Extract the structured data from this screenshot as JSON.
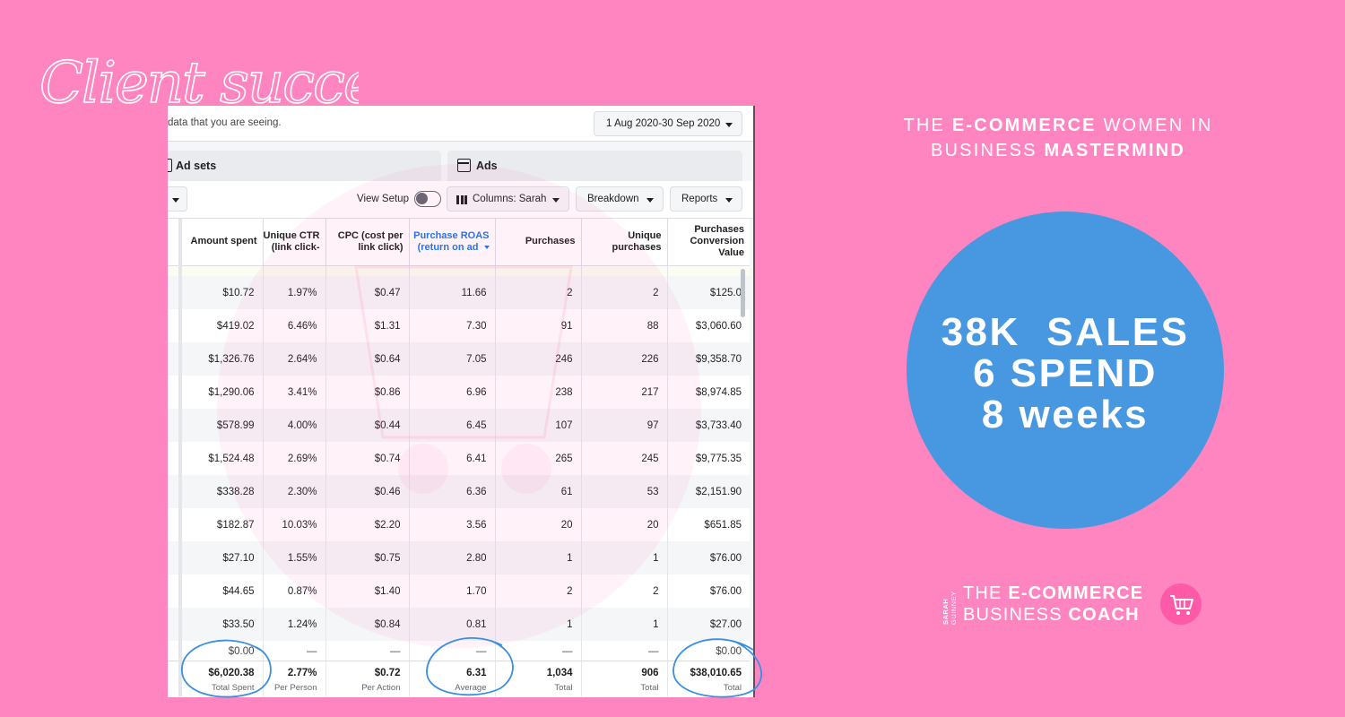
{
  "handwritten_title": "Client success",
  "screenshot": {
    "hint_text": "data that you are seeing.",
    "date_range": "1 Aug 2020-30 Sep 2020",
    "tabs": {
      "ad_sets": "Ad sets",
      "ads": "Ads"
    },
    "toolbar": {
      "view_setup": "View Setup",
      "columns": "Columns: Sarah",
      "breakdown": "Breakdown",
      "reports": "Reports"
    },
    "headers": {
      "amount_spent": "Amount spent",
      "unique_ctr": "Unique CTR (link click-",
      "cpc": "CPC (cost per link click)",
      "roas": "Purchase ROAS (return on ad",
      "purchases": "Purchases",
      "unique_purchases": "Unique purchases",
      "conversion_value": "Purchases Conversion Value"
    },
    "rows": [
      [
        "$10.72",
        "1.97%",
        "$0.47",
        "11.66",
        "2",
        "2",
        "$125.0"
      ],
      [
        "$419.02",
        "6.46%",
        "$1.31",
        "7.30",
        "91",
        "88",
        "$3,060.60"
      ],
      [
        "$1,326.76",
        "2.64%",
        "$0.64",
        "7.05",
        "246",
        "226",
        "$9,358.70"
      ],
      [
        "$1,290.06",
        "3.41%",
        "$0.86",
        "6.96",
        "238",
        "217",
        "$8,974.85"
      ],
      [
        "$578.99",
        "4.00%",
        "$0.44",
        "6.45",
        "107",
        "97",
        "$3,733.40"
      ],
      [
        "$1,524.48",
        "2.69%",
        "$0.74",
        "6.41",
        "265",
        "245",
        "$9,775.35"
      ],
      [
        "$338.28",
        "2.30%",
        "$0.46",
        "6.36",
        "61",
        "53",
        "$2,151.90"
      ],
      [
        "$182.87",
        "10.03%",
        "$2.20",
        "3.56",
        "20",
        "20",
        "$651.85"
      ],
      [
        "$27.10",
        "1.55%",
        "$0.75",
        "2.80",
        "1",
        "1",
        "$76.00"
      ],
      [
        "$44.65",
        "0.87%",
        "$1.40",
        "1.70",
        "2",
        "2",
        "$76.00"
      ],
      [
        "$33.50",
        "1.24%",
        "$0.84",
        "0.81",
        "1",
        "1",
        "$27.00"
      ]
    ],
    "zero_row": [
      "$0.00",
      "—",
      "—",
      "—",
      "—",
      "—",
      "$0.00"
    ],
    "totals": {
      "amount_spent": {
        "value": "$6,020.38",
        "label": "Total Spent"
      },
      "unique_ctr": {
        "value": "2.77%",
        "label": "Per Person"
      },
      "cpc": {
        "value": "$0.72",
        "label": "Per Action"
      },
      "roas": {
        "value": "6.31",
        "label": "Average"
      },
      "purchases": {
        "value": "1,034",
        "label": "Total"
      },
      "unique_purchases": {
        "value": "906",
        "label": "Total"
      },
      "conversion_value": {
        "value": "$38,010.65",
        "label": "Total"
      }
    }
  },
  "headline": {
    "p1": "THE ",
    "b1": "E-COMMERCE",
    "p2": " WOMEN IN BUSINESS ",
    "b2": "MASTERMIND"
  },
  "stats": {
    "line1": "38K  SALES",
    "line2": "6 SPEND",
    "line3": "8 weeks"
  },
  "logo": {
    "side1": "SARAH",
    "side2": "GUINNEY",
    "line1_plain": "THE ",
    "line1_bold": "E-COMMERCE",
    "line2_plain": "BUSINESS ",
    "line2_bold": "COACH"
  },
  "colors": {
    "background": "#ff85c0",
    "circle": "#4798e0",
    "annotation_blue": "#3a8fe0",
    "facebook_blue": "#1877f2"
  },
  "icons": [
    "ad-sets-icon",
    "ads-icon",
    "columns-icon",
    "shopping-cart-icon",
    "chevron-down-icon"
  ]
}
